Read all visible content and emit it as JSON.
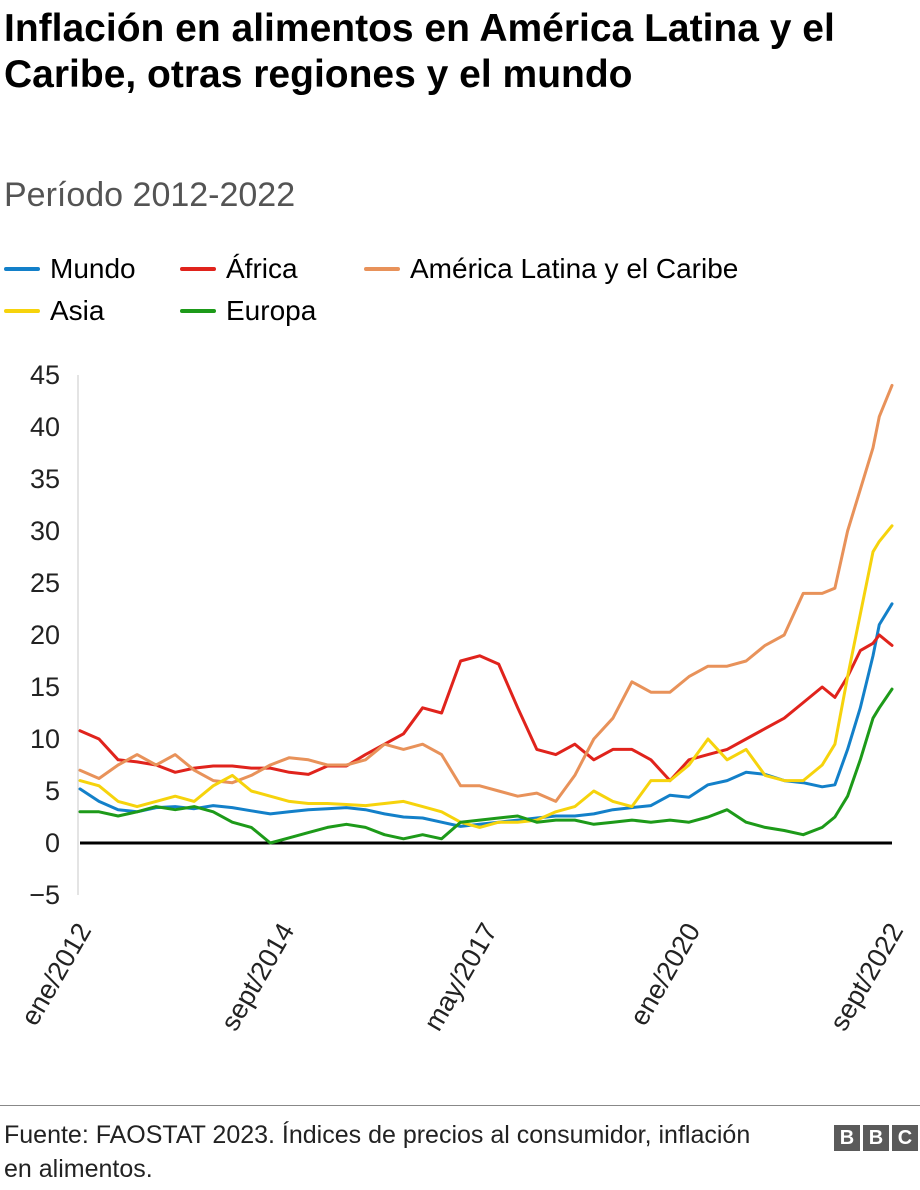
{
  "header": {
    "title": "Inflación en alimentos en América Latina y el Caribe, otras regiones y el mundo",
    "subtitle": "Período 2012-2022"
  },
  "legend": [
    {
      "label": "Mundo",
      "color": "#1380c9"
    },
    {
      "label": "África",
      "color": "#e0231c"
    },
    {
      "label": "América Latina y el Caribe",
      "color": "#e8925a"
    },
    {
      "label": "Asia",
      "color": "#f6d30c"
    },
    {
      "label": "Europa",
      "color": "#1d9a19"
    }
  ],
  "footer": {
    "source": "Fuente: FAOSTAT 2023. Índices de precios al consumidor, inflación en alimentos.",
    "logo_letters": [
      "B",
      "B",
      "C"
    ]
  },
  "chart_data": {
    "type": "line",
    "x_range": [
      "2012-01",
      "2022-09"
    ],
    "x_ticks": [
      "ene/2012",
      "sept/2014",
      "may/2017",
      "ene/2020",
      "sept/2022"
    ],
    "ylim": [
      -5,
      45
    ],
    "y_ticks": [
      "45",
      "40",
      "35",
      "30",
      "25",
      "20",
      "15",
      "10",
      "5",
      "0",
      "−5"
    ],
    "baseline": 0,
    "grid": false,
    "legend_position": "top",
    "series": [
      {
        "name": "Mundo",
        "color": "#1380c9",
        "points": [
          [
            "2012-01",
            5.2
          ],
          [
            "2012-04",
            4
          ],
          [
            "2012-07",
            3.2
          ],
          [
            "2012-10",
            3
          ],
          [
            "2013-01",
            3.4
          ],
          [
            "2013-04",
            3.5
          ],
          [
            "2013-07",
            3.3
          ],
          [
            "2013-10",
            3.6
          ],
          [
            "2014-01",
            3.4
          ],
          [
            "2014-04",
            3.1
          ],
          [
            "2014-07",
            2.8
          ],
          [
            "2014-10",
            3
          ],
          [
            "2015-01",
            3.2
          ],
          [
            "2015-04",
            3.3
          ],
          [
            "2015-07",
            3.4
          ],
          [
            "2015-10",
            3.2
          ],
          [
            "2016-01",
            2.8
          ],
          [
            "2016-04",
            2.5
          ],
          [
            "2016-07",
            2.4
          ],
          [
            "2016-10",
            2
          ],
          [
            "2017-01",
            1.6
          ],
          [
            "2017-04",
            1.8
          ],
          [
            "2017-07",
            2
          ],
          [
            "2017-10",
            2.2
          ],
          [
            "2018-01",
            2.4
          ],
          [
            "2018-04",
            2.6
          ],
          [
            "2018-07",
            2.6
          ],
          [
            "2018-10",
            2.8
          ],
          [
            "2019-01",
            3.2
          ],
          [
            "2019-04",
            3.4
          ],
          [
            "2019-07",
            3.6
          ],
          [
            "2019-10",
            4.6
          ],
          [
            "2020-01",
            4.4
          ],
          [
            "2020-04",
            5.6
          ],
          [
            "2020-07",
            6
          ],
          [
            "2020-10",
            6.8
          ],
          [
            "2021-01",
            6.6
          ],
          [
            "2021-04",
            6
          ],
          [
            "2021-07",
            5.8
          ],
          [
            "2021-10",
            5.4
          ],
          [
            "2021-12",
            5.6
          ],
          [
            "2022-02",
            9
          ],
          [
            "2022-04",
            13
          ],
          [
            "2022-06",
            18
          ],
          [
            "2022-07",
            21
          ],
          [
            "2022-09",
            23
          ]
        ]
      },
      {
        "name": "África",
        "color": "#e0231c",
        "points": [
          [
            "2012-01",
            10.8
          ],
          [
            "2012-04",
            10
          ],
          [
            "2012-07",
            8
          ],
          [
            "2012-10",
            7.8
          ],
          [
            "2013-01",
            7.5
          ],
          [
            "2013-04",
            6.8
          ],
          [
            "2013-07",
            7.2
          ],
          [
            "2013-10",
            7.4
          ],
          [
            "2014-01",
            7.4
          ],
          [
            "2014-04",
            7.2
          ],
          [
            "2014-07",
            7.2
          ],
          [
            "2014-10",
            6.8
          ],
          [
            "2015-01",
            6.6
          ],
          [
            "2015-04",
            7.4
          ],
          [
            "2015-07",
            7.4
          ],
          [
            "2015-10",
            8.5
          ],
          [
            "2016-01",
            9.5
          ],
          [
            "2016-04",
            10.5
          ],
          [
            "2016-07",
            13
          ],
          [
            "2016-10",
            12.5
          ],
          [
            "2017-01",
            17.5
          ],
          [
            "2017-04",
            18
          ],
          [
            "2017-07",
            17.2
          ],
          [
            "2017-10",
            13
          ],
          [
            "2018-01",
            9
          ],
          [
            "2018-04",
            8.5
          ],
          [
            "2018-07",
            9.5
          ],
          [
            "2018-10",
            8
          ],
          [
            "2019-01",
            9
          ],
          [
            "2019-04",
            9
          ],
          [
            "2019-07",
            8
          ],
          [
            "2019-10",
            6
          ],
          [
            "2020-01",
            8
          ],
          [
            "2020-04",
            8.5
          ],
          [
            "2020-07",
            9
          ],
          [
            "2020-10",
            10
          ],
          [
            "2021-01",
            11
          ],
          [
            "2021-04",
            12
          ],
          [
            "2021-07",
            13.5
          ],
          [
            "2021-10",
            15
          ],
          [
            "2021-12",
            14
          ],
          [
            "2022-02",
            16
          ],
          [
            "2022-04",
            18.5
          ],
          [
            "2022-06",
            19.2
          ],
          [
            "2022-07",
            20
          ],
          [
            "2022-09",
            19
          ]
        ]
      },
      {
        "name": "América Latina y el Caribe",
        "color": "#e8925a",
        "points": [
          [
            "2012-01",
            7
          ],
          [
            "2012-04",
            6.2
          ],
          [
            "2012-07",
            7.5
          ],
          [
            "2012-10",
            8.5
          ],
          [
            "2013-01",
            7.5
          ],
          [
            "2013-04",
            8.5
          ],
          [
            "2013-07",
            7
          ],
          [
            "2013-10",
            6
          ],
          [
            "2014-01",
            5.8
          ],
          [
            "2014-04",
            6.5
          ],
          [
            "2014-07",
            7.5
          ],
          [
            "2014-10",
            8.2
          ],
          [
            "2015-01",
            8
          ],
          [
            "2015-04",
            7.5
          ],
          [
            "2015-07",
            7.5
          ],
          [
            "2015-10",
            8
          ],
          [
            "2016-01",
            9.5
          ],
          [
            "2016-04",
            9
          ],
          [
            "2016-07",
            9.5
          ],
          [
            "2016-10",
            8.5
          ],
          [
            "2017-01",
            5.5
          ],
          [
            "2017-04",
            5.5
          ],
          [
            "2017-07",
            5
          ],
          [
            "2017-10",
            4.5
          ],
          [
            "2018-01",
            4.8
          ],
          [
            "2018-04",
            4
          ],
          [
            "2018-07",
            6.5
          ],
          [
            "2018-10",
            10
          ],
          [
            "2019-01",
            12
          ],
          [
            "2019-04",
            15.5
          ],
          [
            "2019-07",
            14.5
          ],
          [
            "2019-10",
            14.5
          ],
          [
            "2020-01",
            16
          ],
          [
            "2020-04",
            17
          ],
          [
            "2020-07",
            17
          ],
          [
            "2020-10",
            17.5
          ],
          [
            "2021-01",
            19
          ],
          [
            "2021-04",
            20
          ],
          [
            "2021-07",
            24
          ],
          [
            "2021-10",
            24
          ],
          [
            "2021-12",
            24.5
          ],
          [
            "2022-02",
            30
          ],
          [
            "2022-04",
            34
          ],
          [
            "2022-06",
            38
          ],
          [
            "2022-07",
            41
          ],
          [
            "2022-09",
            44
          ]
        ]
      },
      {
        "name": "Asia",
        "color": "#f6d30c",
        "points": [
          [
            "2012-01",
            6
          ],
          [
            "2012-04",
            5.5
          ],
          [
            "2012-07",
            4
          ],
          [
            "2012-10",
            3.5
          ],
          [
            "2013-01",
            4
          ],
          [
            "2013-04",
            4.5
          ],
          [
            "2013-07",
            4
          ],
          [
            "2013-10",
            5.5
          ],
          [
            "2014-01",
            6.5
          ],
          [
            "2014-04",
            5
          ],
          [
            "2014-07",
            4.5
          ],
          [
            "2014-10",
            4
          ],
          [
            "2015-01",
            3.8
          ],
          [
            "2015-04",
            3.8
          ],
          [
            "2015-07",
            3.7
          ],
          [
            "2015-10",
            3.6
          ],
          [
            "2016-01",
            3.8
          ],
          [
            "2016-04",
            4
          ],
          [
            "2016-07",
            3.5
          ],
          [
            "2016-10",
            3
          ],
          [
            "2017-01",
            2
          ],
          [
            "2017-04",
            1.5
          ],
          [
            "2017-07",
            2
          ],
          [
            "2017-10",
            2
          ],
          [
            "2018-01",
            2.2
          ],
          [
            "2018-04",
            3
          ],
          [
            "2018-07",
            3.5
          ],
          [
            "2018-10",
            5
          ],
          [
            "2019-01",
            4
          ],
          [
            "2019-04",
            3.5
          ],
          [
            "2019-07",
            6
          ],
          [
            "2019-10",
            6
          ],
          [
            "2020-01",
            7.5
          ],
          [
            "2020-04",
            10
          ],
          [
            "2020-07",
            8
          ],
          [
            "2020-10",
            9
          ],
          [
            "2021-01",
            6.5
          ],
          [
            "2021-04",
            6
          ],
          [
            "2021-07",
            6
          ],
          [
            "2021-10",
            7.5
          ],
          [
            "2021-12",
            9.5
          ],
          [
            "2022-02",
            16
          ],
          [
            "2022-04",
            22
          ],
          [
            "2022-06",
            28
          ],
          [
            "2022-07",
            29
          ],
          [
            "2022-09",
            30.5
          ]
        ]
      },
      {
        "name": "Europa",
        "color": "#1d9a19",
        "points": [
          [
            "2012-01",
            3
          ],
          [
            "2012-04",
            3
          ],
          [
            "2012-07",
            2.6
          ],
          [
            "2012-10",
            3
          ],
          [
            "2013-01",
            3.5
          ],
          [
            "2013-04",
            3.2
          ],
          [
            "2013-07",
            3.5
          ],
          [
            "2013-10",
            3
          ],
          [
            "2014-01",
            2
          ],
          [
            "2014-04",
            1.5
          ],
          [
            "2014-07",
            0
          ],
          [
            "2014-10",
            0.5
          ],
          [
            "2015-01",
            1
          ],
          [
            "2015-04",
            1.5
          ],
          [
            "2015-07",
            1.8
          ],
          [
            "2015-10",
            1.5
          ],
          [
            "2016-01",
            0.8
          ],
          [
            "2016-04",
            0.4
          ],
          [
            "2016-07",
            0.8
          ],
          [
            "2016-10",
            0.4
          ],
          [
            "2017-01",
            2
          ],
          [
            "2017-04",
            2.2
          ],
          [
            "2017-07",
            2.4
          ],
          [
            "2017-10",
            2.6
          ],
          [
            "2018-01",
            2
          ],
          [
            "2018-04",
            2.2
          ],
          [
            "2018-07",
            2.2
          ],
          [
            "2018-10",
            1.8
          ],
          [
            "2019-01",
            2
          ],
          [
            "2019-04",
            2.2
          ],
          [
            "2019-07",
            2
          ],
          [
            "2019-10",
            2.2
          ],
          [
            "2020-01",
            2
          ],
          [
            "2020-04",
            2.5
          ],
          [
            "2020-07",
            3.2
          ],
          [
            "2020-10",
            2
          ],
          [
            "2021-01",
            1.5
          ],
          [
            "2021-04",
            1.2
          ],
          [
            "2021-07",
            0.8
          ],
          [
            "2021-10",
            1.5
          ],
          [
            "2021-12",
            2.5
          ],
          [
            "2022-02",
            4.5
          ],
          [
            "2022-04",
            8
          ],
          [
            "2022-06",
            12
          ],
          [
            "2022-07",
            13
          ],
          [
            "2022-09",
            14.8
          ]
        ]
      }
    ]
  }
}
